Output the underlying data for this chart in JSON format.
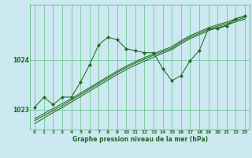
{
  "xlabel": "Graphe pression niveau de la mer (hPa)",
  "background_color": "#cce8f0",
  "grid_color": "#4db36b",
  "line_color": "#1f6b1f",
  "marker_color": "#1f6b1f",
  "x_ticks": [
    0,
    1,
    2,
    3,
    4,
    5,
    6,
    7,
    8,
    9,
    10,
    11,
    12,
    13,
    14,
    15,
    16,
    17,
    18,
    19,
    20,
    21,
    22,
    23
  ],
  "xlim": [
    -0.5,
    23.5
  ],
  "ylim": [
    1022.6,
    1025.1
  ],
  "y_ticks": [
    1023,
    1024
  ],
  "series_main": [
    1023.05,
    1023.25,
    1023.1,
    1023.25,
    1023.25,
    1023.55,
    1023.9,
    1024.3,
    1024.45,
    1024.4,
    1024.22,
    1024.18,
    1024.14,
    1024.14,
    1023.82,
    1023.58,
    1023.68,
    1023.98,
    1024.18,
    1024.62,
    1024.62,
    1024.68,
    1024.82,
    1024.88
  ],
  "series_linear": [
    [
      1022.82,
      1022.92,
      1023.02,
      1023.12,
      1023.22,
      1023.33,
      1023.44,
      1023.55,
      1023.66,
      1023.77,
      1023.87,
      1023.96,
      1024.04,
      1024.12,
      1024.19,
      1024.26,
      1024.38,
      1024.48,
      1024.56,
      1024.64,
      1024.7,
      1024.75,
      1024.82,
      1024.87
    ],
    [
      1022.78,
      1022.88,
      1022.98,
      1023.08,
      1023.19,
      1023.3,
      1023.41,
      1023.52,
      1023.63,
      1023.74,
      1023.84,
      1023.93,
      1024.01,
      1024.09,
      1024.16,
      1024.23,
      1024.35,
      1024.45,
      1024.53,
      1024.61,
      1024.67,
      1024.72,
      1024.79,
      1024.84
    ],
    [
      1022.72,
      1022.83,
      1022.94,
      1023.04,
      1023.15,
      1023.26,
      1023.37,
      1023.48,
      1023.59,
      1023.7,
      1023.8,
      1023.89,
      1023.97,
      1024.05,
      1024.13,
      1024.2,
      1024.32,
      1024.42,
      1024.5,
      1024.58,
      1024.64,
      1024.69,
      1024.76,
      1024.81
    ]
  ]
}
